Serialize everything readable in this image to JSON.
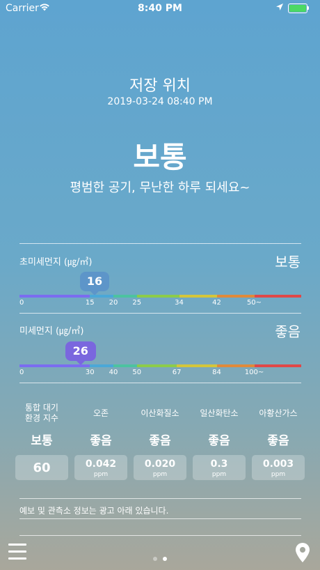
{
  "status_bar": {
    "carrier": "Carrier",
    "time": "8:40 PM",
    "battery_level": 1.0
  },
  "location": {
    "name": "저장 위치",
    "datetime": "2019-03-24 08:40 PM"
  },
  "overall": {
    "grade": "보통",
    "message": "평범한 공기, 무난한 하루 되세요~"
  },
  "pm25": {
    "label": "초미세먼지 (㎍/㎥)",
    "grade": "보통",
    "value": "16",
    "value_num": 16,
    "ticks": [
      "0",
      "15",
      "20",
      "25",
      "34",
      "42",
      "50~"
    ],
    "tick_values": [
      0,
      15,
      20,
      25,
      34,
      42,
      50
    ],
    "scale_max": 60,
    "segment_colors": [
      "#7b6cf0",
      "#4aa8d8",
      "#4cc3a0",
      "#8ccc4a",
      "#d4c63a",
      "#e08a3a",
      "#e04848"
    ],
    "bubble_color": "#5d95c9"
  },
  "pm10": {
    "label": "미세먼지 (㎍/㎥)",
    "grade": "좋음",
    "value": "26",
    "value_num": 26,
    "ticks": [
      "0",
      "30",
      "40",
      "50",
      "67",
      "84",
      "100~"
    ],
    "tick_values": [
      0,
      30,
      40,
      50,
      67,
      84,
      100
    ],
    "scale_max": 120,
    "segment_colors": [
      "#7b6cf0",
      "#4aa8d8",
      "#4cc3a0",
      "#8ccc4a",
      "#d4c63a",
      "#e08a3a",
      "#e04848"
    ],
    "bubble_color": "#7a67de"
  },
  "indices": [
    {
      "name": "통합 대기\n환경 지수",
      "grade": "보통",
      "value": "60",
      "unit": ""
    },
    {
      "name": "오존",
      "grade": "좋음",
      "value": "0.042",
      "unit": "ppm"
    },
    {
      "name": "이산화질소",
      "grade": "좋음",
      "value": "0.020",
      "unit": "ppm"
    },
    {
      "name": "일산화탄소",
      "grade": "좋음",
      "value": "0.3",
      "unit": "ppm"
    },
    {
      "name": "아황산가스",
      "grade": "좋음",
      "value": "0.003",
      "unit": "ppm"
    }
  ],
  "notice": "예보 및 관측소 정보는 광고 아래 있습니다.",
  "pager": {
    "count": 2,
    "current": 2
  },
  "icons": {
    "menu": "hamburger-menu-icon",
    "location": "location-pin-icon",
    "wifi": "wifi-icon",
    "location_arrow": "location-arrow-icon"
  }
}
